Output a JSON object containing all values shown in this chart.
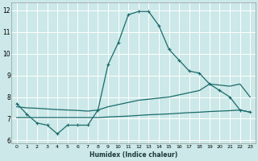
{
  "xlabel": "Humidex (Indice chaleur)",
  "background_color": "#cce8e8",
  "grid_color": "#ffffff",
  "line_color": "#1a6b6b",
  "xlim": [
    -0.5,
    23.5
  ],
  "ylim": [
    5.85,
    12.35
  ],
  "yticks": [
    6,
    7,
    8,
    9,
    10,
    11,
    12
  ],
  "xticks": [
    0,
    1,
    2,
    3,
    4,
    5,
    6,
    7,
    8,
    9,
    10,
    11,
    12,
    13,
    14,
    15,
    16,
    17,
    18,
    19,
    20,
    21,
    22,
    23
  ],
  "line1_x": [
    0,
    1,
    2,
    3,
    4,
    5,
    6,
    7,
    8,
    9,
    10,
    11,
    12,
    13,
    14,
    15,
    16,
    17,
    18,
    19,
    20,
    21,
    22,
    23
  ],
  "line1_y": [
    7.7,
    7.2,
    6.8,
    6.7,
    6.3,
    6.7,
    6.7,
    6.7,
    7.4,
    9.5,
    10.5,
    11.8,
    11.95,
    11.95,
    11.3,
    10.2,
    9.7,
    9.2,
    9.1,
    8.6,
    8.3,
    8.0,
    7.4,
    7.3
  ],
  "line2_x": [
    0,
    1,
    2,
    3,
    4,
    5,
    6,
    7,
    8,
    9,
    10,
    11,
    12,
    13,
    14,
    15,
    16,
    17,
    18,
    19,
    20,
    21,
    22,
    23
  ],
  "line2_y": [
    7.05,
    7.05,
    7.05,
    7.05,
    7.05,
    7.05,
    7.05,
    7.05,
    7.05,
    7.08,
    7.1,
    7.12,
    7.15,
    7.18,
    7.2,
    7.22,
    7.25,
    7.28,
    7.3,
    7.33,
    7.35,
    7.37,
    7.4,
    7.3
  ],
  "line3_x": [
    0,
    1,
    2,
    3,
    4,
    5,
    6,
    7,
    8,
    9,
    10,
    11,
    12,
    13,
    14,
    15,
    16,
    17,
    18,
    19,
    20,
    21,
    22,
    23
  ],
  "line3_y": [
    7.55,
    7.5,
    7.48,
    7.45,
    7.42,
    7.4,
    7.38,
    7.35,
    7.4,
    7.55,
    7.65,
    7.75,
    7.85,
    7.9,
    7.95,
    8.0,
    8.1,
    8.2,
    8.3,
    8.6,
    8.55,
    8.5,
    8.6,
    8.0
  ]
}
